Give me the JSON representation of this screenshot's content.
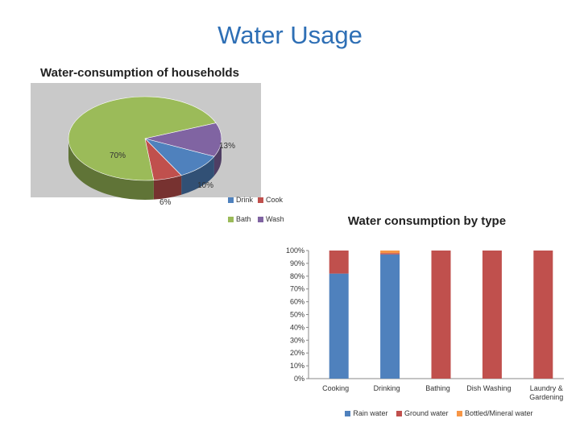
{
  "slide": {
    "title": "Water Usage"
  },
  "colors": {
    "title": "#2e6fb5",
    "bath": "#9bbb59",
    "wash": "#8064a2",
    "drink": "#4f81bd",
    "cook": "#c0504d",
    "rain": "#4f81bd",
    "ground": "#c0504d",
    "bottled": "#f79646"
  },
  "chart_data": [
    {
      "type": "pie",
      "title": "Water-consumption of households",
      "legend": "bottom-right",
      "slices": [
        {
          "name": "Drink",
          "value": 10,
          "label": "10%"
        },
        {
          "name": "Cook",
          "value": 6,
          "label": "6%"
        },
        {
          "name": "Bath",
          "value": 70,
          "label": "70%"
        },
        {
          "name": "Wash",
          "value": 13,
          "label": "13%"
        }
      ]
    },
    {
      "type": "bar",
      "stacked": true,
      "title": "Water consumption by type",
      "legend": "bottom",
      "categories": [
        "Cooking",
        "Drinking",
        "Bathing",
        "Dish Washing",
        "Laundry & Gardening"
      ],
      "category_lines": [
        [
          "Cooking"
        ],
        [
          "Drinking"
        ],
        [
          "Bathing"
        ],
        [
          "Dish Washing"
        ],
        [
          "Laundry &",
          "Gardening"
        ]
      ],
      "series": [
        {
          "name": "Rain water",
          "values": [
            82,
            97,
            0,
            0,
            0
          ]
        },
        {
          "name": "Ground water",
          "values": [
            18,
            1,
            100,
            100,
            100
          ]
        },
        {
          "name": "Bottled/Mineral water",
          "values": [
            0,
            2,
            0,
            0,
            0
          ]
        }
      ],
      "yticks": [
        "0%",
        "10%",
        "20%",
        "30%",
        "40%",
        "50%",
        "60%",
        "70%",
        "80%",
        "90%",
        "100%"
      ],
      "ylim": [
        0,
        100
      ],
      "grid": false
    }
  ]
}
